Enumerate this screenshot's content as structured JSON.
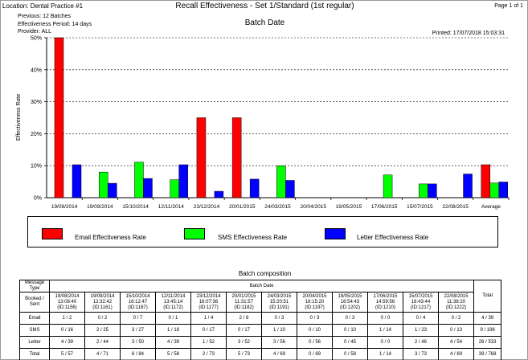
{
  "header": {
    "location": "Location: Dental Practice #1",
    "report_title": "Recall Effectiveness - Set 1/Standard (1st regular)",
    "page_label": "Page 1 of 1",
    "previous": "Previous: 12 Batches",
    "period": "Effectiveness Period: 14 days",
    "provider": "Provider: ALL",
    "printed": "Printed: 17/07/2018 15:03:31"
  },
  "chart_data": {
    "type": "bar",
    "title": "Batch Date",
    "ylabel": "Effectiveness Rate",
    "xlabel": "",
    "ylim": [
      0,
      50
    ],
    "yticks": [
      "0%",
      "10%",
      "20%",
      "30%",
      "40%",
      "50%"
    ],
    "grid": "horizontal dashed",
    "legend_position": "bottom",
    "categories": [
      "19/08/2014",
      "19/09/2014",
      "15/10/2014",
      "12/11/2014",
      "23/12/2014",
      "20/01/2015",
      "24/03/2015",
      "20/04/2015",
      "19/05/2015",
      "17/06/2015",
      "15/07/2015",
      "22/08/2015",
      "Average"
    ],
    "series": [
      {
        "name": "Email Effectiveness Rate",
        "color": "#ff0000",
        "values": [
          50,
          0,
          0,
          0,
          25,
          25,
          0,
          0,
          0,
          0,
          0,
          0,
          10.3
        ]
      },
      {
        "name": "SMS Effectiveness Rate",
        "color": "#00ff00",
        "values": [
          0,
          8,
          11.1,
          5.6,
          0,
          0,
          10,
          0,
          0,
          7.1,
          4.3,
          0,
          4.6
        ]
      },
      {
        "name": "Letter Effectiveness Rate",
        "color": "#0000ff",
        "values": [
          10.3,
          4.5,
          6,
          10.3,
          2,
          5.8,
          5.4,
          0,
          0,
          0,
          4.3,
          7.4,
          4.9
        ]
      }
    ]
  },
  "composition": {
    "title": "Batch composition",
    "corner_top": "Message Type",
    "corner_bottom": "Booked / Sent",
    "group_header": "Batch Date",
    "columns": [
      {
        "date": "19/08/2014",
        "time": "13:08:40",
        "id": "(ID:1156)"
      },
      {
        "date": "19/09/2014",
        "time": "12:32:42",
        "id": "(ID:1161)"
      },
      {
        "date": "15/10/2014",
        "time": "16:12:47",
        "id": "(ID:1167)"
      },
      {
        "date": "12/11/2014",
        "time": "13:45:14",
        "id": "(ID:1172)"
      },
      {
        "date": "23/12/2014",
        "time": "16:07:36",
        "id": "(ID:1177)"
      },
      {
        "date": "20/01/2015",
        "time": "11:31:57",
        "id": "(ID:1182)"
      },
      {
        "date": "24/03/2015",
        "time": "15:20:51",
        "id": "(ID:1191)"
      },
      {
        "date": "20/04/2015",
        "time": "16:15:20",
        "id": "(ID:1197)"
      },
      {
        "date": "19/05/2015",
        "time": "16:54:43",
        "id": "(ID:1202)"
      },
      {
        "date": "17/06/2015",
        "time": "14:59:56",
        "id": "(ID:1210)"
      },
      {
        "date": "15/07/2015",
        "time": "16:43:44",
        "id": "(ID:1217)"
      },
      {
        "date": "22/08/2015",
        "time": "11:38:20",
        "id": "(ID:1222)"
      }
    ],
    "total_label": "Total",
    "rows": [
      {
        "type": "Email",
        "cells": [
          "1 / 2",
          "0 / 2",
          "0 / 7",
          "0 / 1",
          "1 / 4",
          "2 / 8",
          "0 / 3",
          "0 / 3",
          "0 / 3",
          "0 / 0",
          "0 / 4",
          "0 / 2"
        ],
        "total": "4 / 39"
      },
      {
        "type": "SMS",
        "cells": [
          "0 / 16",
          "2 / 25",
          "3 / 27",
          "1 / 18",
          "0 / 17",
          "0 / 17",
          "1 / 10",
          "0 / 10",
          "0 / 10",
          "1 / 14",
          "1 / 23",
          "0 / 13"
        ],
        "total": "9 / 196"
      },
      {
        "type": "Letter",
        "cells": [
          "4 / 39",
          "2 / 44",
          "3 / 50",
          "4 / 39",
          "1 / 52",
          "3 / 52",
          "3 / 56",
          "0 / 56",
          "0 / 45",
          "0 / 0",
          "2 / 46",
          "4 / 54"
        ],
        "total": "26 / 533"
      },
      {
        "type": "Total",
        "cells": [
          "5 / 57",
          "4 / 71",
          "6 / 84",
          "5 / 58",
          "2 / 73",
          "5 / 73",
          "4 / 69",
          "0 / 69",
          "0 / 58",
          "1 / 14",
          "3 / 73",
          "4 / 69"
        ],
        "total": "39 / 768"
      }
    ]
  }
}
